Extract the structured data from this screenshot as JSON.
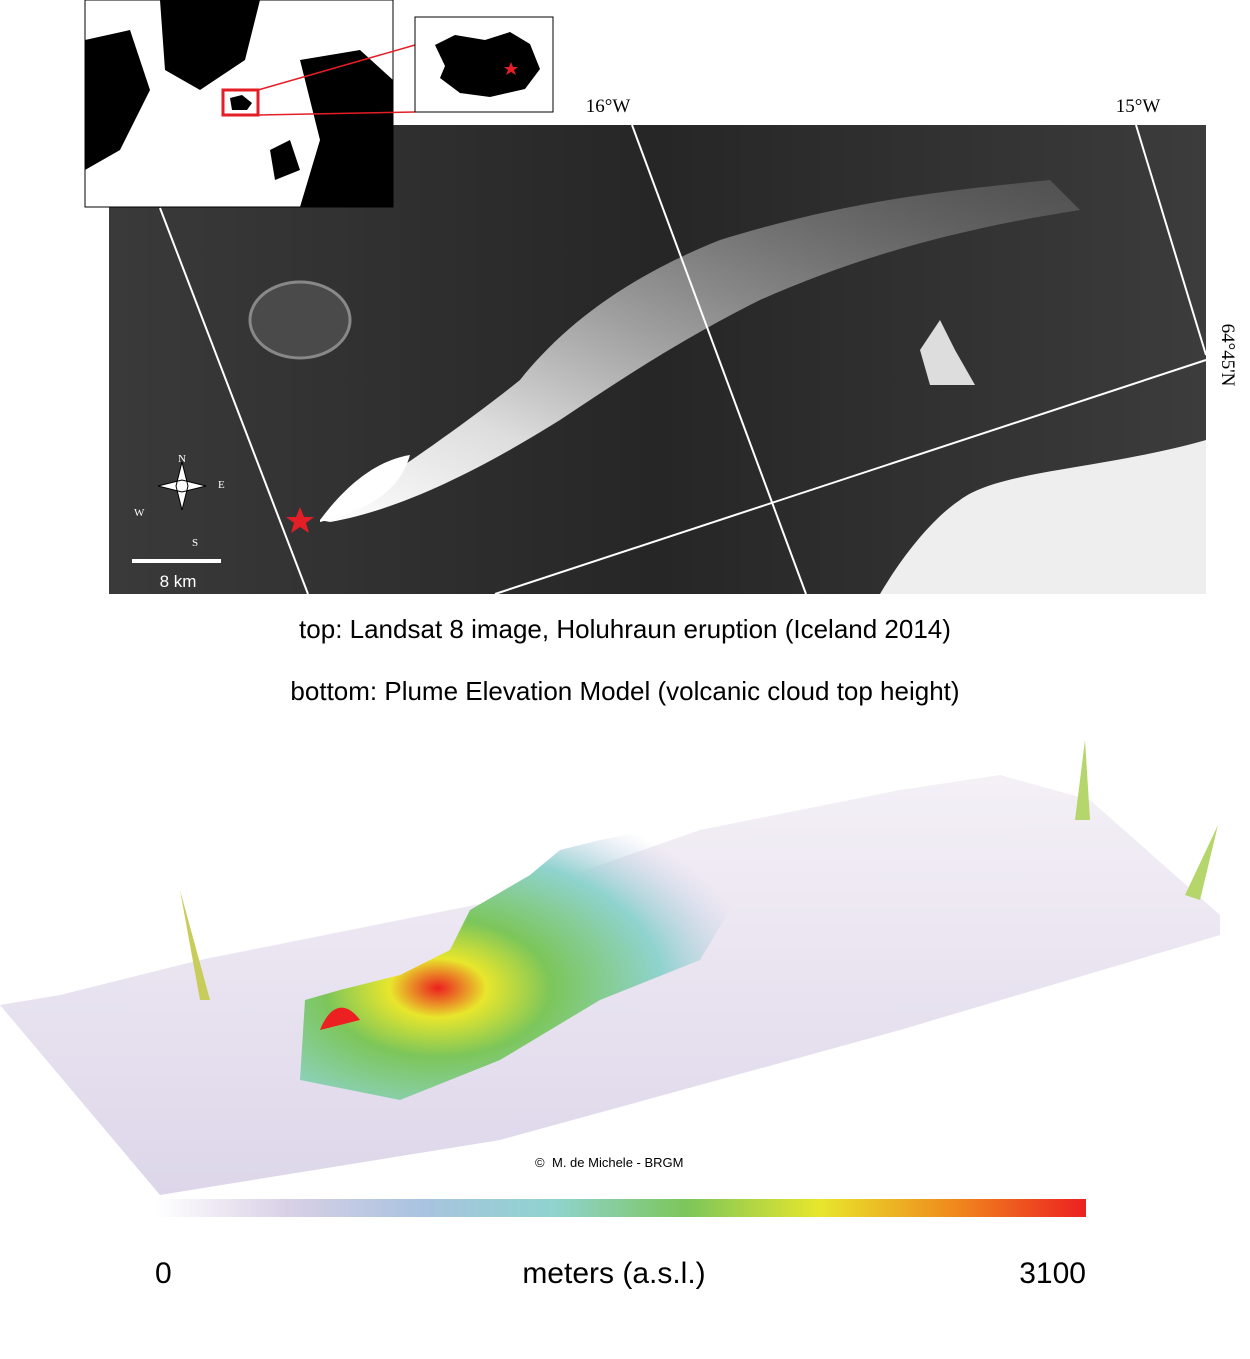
{
  "landsat_image": {
    "longitude_labels": [
      "16°W",
      "15°W"
    ],
    "latitude_label": "64°45'N",
    "compass": [
      "N",
      "E",
      "S",
      "W"
    ],
    "scale_bar": "8 km"
  },
  "captions": [
    "top: Landsat 8 image, Holuhraun eruption (Iceland 2014)",
    "bottom: Plume Elevation Model (volcanic cloud top height)"
  ],
  "elevation_model": {
    "credit": "M. de Michele - BRGM",
    "colorbar": {
      "min": 0,
      "max": 3100,
      "label": "meters (a.s.l.)",
      "colors": [
        "#ffffff",
        "#d9d0e6",
        "#a9c3e0",
        "#8fd3cf",
        "#7cc65a",
        "#e8e62c",
        "#f08a1d",
        "#ec2020"
      ]
    }
  }
}
